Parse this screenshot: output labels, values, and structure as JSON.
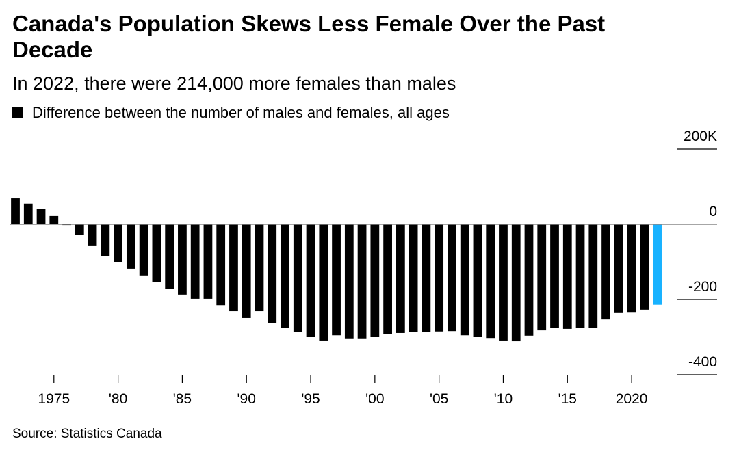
{
  "chart_data": {
    "type": "bar",
    "title": "Canada's Population Skews Less Female Over the Past Decade",
    "subtitle": "In 2022, there were 214,000 more females than males",
    "legend": "Difference between the number of males and females, all ages",
    "source": "Source: Statistics Canada",
    "x": [
      1972,
      1973,
      1974,
      1975,
      1976,
      1977,
      1978,
      1979,
      1980,
      1981,
      1982,
      1983,
      1984,
      1985,
      1986,
      1987,
      1988,
      1989,
      1990,
      1991,
      1992,
      1993,
      1994,
      1995,
      1996,
      1997,
      1998,
      1999,
      2000,
      2001,
      2002,
      2003,
      2004,
      2005,
      2006,
      2007,
      2008,
      2009,
      2010,
      2011,
      2012,
      2013,
      2014,
      2015,
      2016,
      2017,
      2018,
      2019,
      2020,
      2021,
      2022
    ],
    "values": [
      69,
      55,
      40,
      22,
      -2,
      -29,
      -58,
      -84,
      -100,
      -118,
      -136,
      -153,
      -171,
      -187,
      -198,
      -198,
      -215,
      -231,
      -249,
      -231,
      -262,
      -276,
      -287,
      -300,
      -309,
      -295,
      -305,
      -305,
      -300,
      -291,
      -289,
      -287,
      -287,
      -285,
      -284,
      -295,
      -300,
      -304,
      -309,
      -311,
      -296,
      -282,
      -275,
      -278,
      -276,
      -275,
      -253,
      -236,
      -235,
      -227,
      -214
    ],
    "color": "#000000",
    "highlight": {
      "index": 50,
      "color": "#18b2ff"
    },
    "xlim": [
      1971.6,
      2023.3
    ],
    "xticks": [
      1975,
      {
        "value": 1980,
        "label": "'80"
      },
      {
        "value": 1985,
        "label": "'85"
      },
      {
        "value": 1990,
        "label": "'90"
      },
      {
        "value": 1995,
        "label": "'95"
      },
      {
        "value": 2000,
        "label": "'00"
      },
      {
        "value": 2005,
        "label": "'05"
      },
      {
        "value": 2010,
        "label": "'10"
      },
      {
        "value": 2015,
        "label": "'15"
      },
      2020
    ],
    "ylim": [
      -400,
      200
    ],
    "yticks": [
      {
        "value": 200,
        "label": "200K"
      },
      0,
      -200,
      -400
    ]
  }
}
